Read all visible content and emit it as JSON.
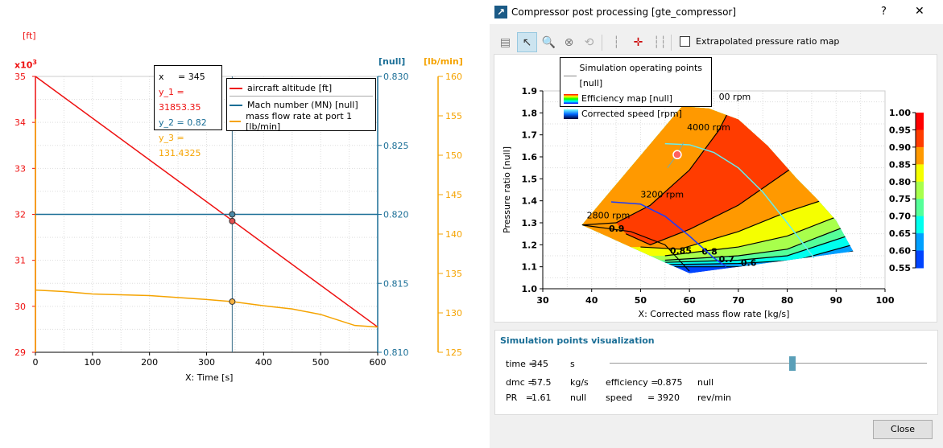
{
  "left_chart": {
    "xlabel": "X: Time [s]",
    "y1_unit": "[ft]",
    "y1_multiplier": "x10",
    "y1_multiplier_exp": "3",
    "y2_unit": "[null]",
    "y3_unit": "[lb/min]",
    "tooltip": {
      "x": "x     = 345",
      "y1": "y_1 = 31853.35",
      "y2": "y_2 = 0.82",
      "y3": "y_3 = 131.4325"
    },
    "legend": [
      "aircraft altitude [ft]",
      "Mach number (MN) [null]",
      "mass flow rate at port 1 [lb/min]"
    ],
    "colors": {
      "altitude": "#ee1111",
      "mach": "#1a6e96",
      "mass_flow": "#f5a300"
    },
    "cursor_x": 345
  },
  "chart_data": [
    {
      "type": "line",
      "xlabel": "X: Time [s]",
      "xlim": [
        0,
        600
      ],
      "x_ticks": [
        "0",
        "100",
        "200",
        "300",
        "400",
        "500",
        "600"
      ],
      "y1_ticks": [
        "29",
        "30",
        "31",
        "32",
        "33",
        "34",
        "35"
      ],
      "y2_ticks": [
        "0.810",
        "0.815",
        "0.820",
        "0.825",
        "0.830"
      ],
      "y3_ticks": [
        "125",
        "130",
        "135",
        "140",
        "145",
        "150",
        "155",
        "160"
      ],
      "grid": true,
      "legend_position": "top-right",
      "series": [
        {
          "name": "aircraft altitude [ft]",
          "axis": "y1",
          "ylim": [
            29000,
            35000
          ],
          "x": [
            0,
            600
          ],
          "y": [
            35000,
            29550
          ]
        },
        {
          "name": "Mach number (MN) [null]",
          "axis": "y2",
          "ylim": [
            0.81,
            0.83
          ],
          "x": [
            0,
            600
          ],
          "y": [
            0.82,
            0.82
          ]
        },
        {
          "name": "mass flow rate at port 1 [lb/min]",
          "axis": "y3",
          "ylim": [
            125,
            160
          ],
          "x": [
            0,
            50,
            100,
            200,
            300,
            345,
            400,
            450,
            500,
            530,
            560,
            600
          ],
          "y": [
            132.9,
            132.7,
            132.4,
            132.2,
            131.7,
            131.43,
            130.9,
            130.5,
            129.8,
            129.1,
            128.4,
            128.2
          ]
        }
      ]
    },
    {
      "type": "heatmap",
      "xlabel": "X: Corrected mass flow rate [kg/s]",
      "ylabel": "Pressure ratio [null]",
      "xlim": [
        30,
        100
      ],
      "ylim": [
        1.0,
        1.9
      ],
      "x_ticks": [
        "30",
        "40",
        "50",
        "60",
        "70",
        "80",
        "90",
        "100"
      ],
      "y_ticks": [
        "1.0",
        "1.1",
        "1.2",
        "1.3",
        "1.4",
        "1.5",
        "1.6",
        "1.7",
        "1.8",
        "1.9"
      ],
      "colorbar_ticks": [
        "1.00",
        "0.95",
        "0.90",
        "0.85",
        "0.80",
        "0.75",
        "0.70",
        "0.65",
        "0.60",
        "0.55"
      ],
      "colorbar_colors": [
        "#ff0000",
        "#ff3c00",
        "#ff9900",
        "#f5ff00",
        "#a8ff4c",
        "#55ff99",
        "#00ffee",
        "#00a0ff",
        "#0044ff"
      ],
      "contour_labels": [
        "0.9",
        "0.85",
        "0.8",
        "0.7",
        "0.6"
      ],
      "speed_lines": [
        {
          "label": "4000 rpm",
          "color": "#66eeee",
          "x": [
            55,
            60,
            65,
            70,
            75,
            80,
            85.5
          ],
          "y": [
            1.66,
            1.655,
            1.62,
            1.55,
            1.44,
            1.3,
            1.14
          ]
        },
        {
          "label": "3200 rpm",
          "color": "#1a3cff",
          "x": [
            44,
            50,
            55,
            60,
            65,
            67.5
          ],
          "y": [
            1.395,
            1.385,
            1.33,
            1.24,
            1.14,
            1.1
          ]
        },
        {
          "label": "2800 rpm"
        },
        {
          "label": "00 rpm"
        }
      ],
      "operating_trace": {
        "x": [
          55.5,
          57.5,
          58.8
        ],
        "y": [
          1.55,
          1.61,
          1.665
        ]
      },
      "current_point": {
        "x": 57.5,
        "y": 1.61
      },
      "legend": [
        "Simulation operating points [null]",
        "Efficiency map [null]",
        "Corrected speed [rpm]"
      ]
    }
  ],
  "dialog": {
    "title": "Compressor post processing [gte_compressor]",
    "help": "?",
    "close_x": "✕",
    "toolbar": {
      "checkbox_label": "Extrapolated pressure ratio map",
      "checkbox_checked": false
    },
    "sim": {
      "heading": "Simulation points visualization",
      "time_label": "time =",
      "time_value": "345",
      "time_unit": "s",
      "dmc_label": "dmc =",
      "dmc_value": "57.5",
      "dmc_unit": "kg/s",
      "eff_label": "efficiency =",
      "eff_value": "0.875",
      "eff_unit": "null",
      "pr_label": "PR   =",
      "pr_value": "1.61",
      "pr_unit": "null",
      "speed_label": "speed",
      "speed_eq": "=",
      "speed_value": "3920",
      "speed_unit": "rev/min",
      "slider_fraction": 0.575
    },
    "close_button": "Close"
  }
}
